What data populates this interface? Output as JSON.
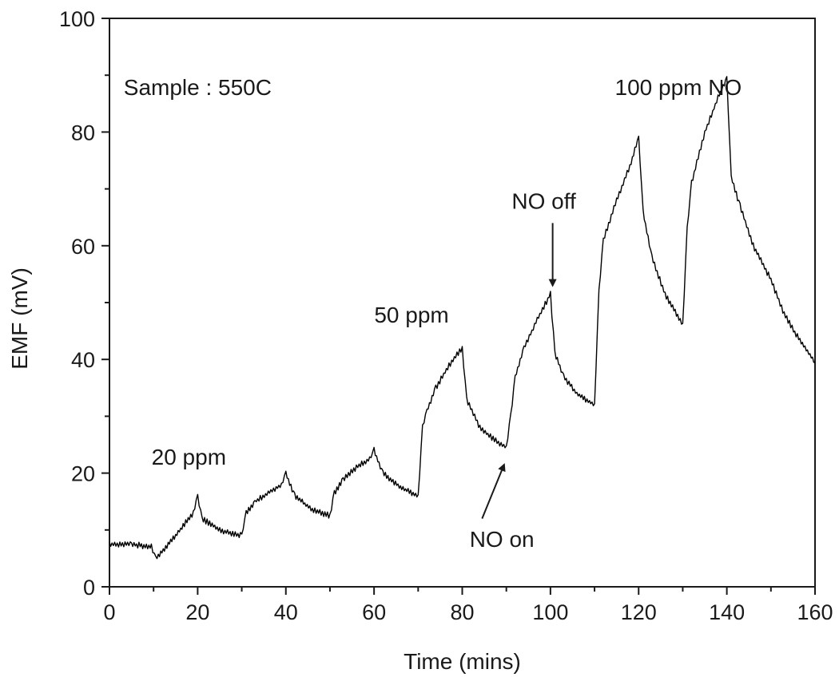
{
  "chart_data": {
    "type": "line",
    "xlabel": "Time (mins)",
    "ylabel": "EMF (mV)",
    "xlim": [
      0,
      160
    ],
    "ylim": [
      0,
      100
    ],
    "xticks": [
      0,
      20,
      40,
      60,
      80,
      100,
      120,
      140,
      160
    ],
    "yticks": [
      0,
      20,
      40,
      60,
      80,
      100
    ],
    "grid": false,
    "series": [
      {
        "color": "#000000",
        "x": [
          0,
          5,
          9.5,
          10.5,
          15,
          19,
          20,
          21,
          25,
          30,
          31,
          33,
          36,
          39,
          40,
          42,
          46,
          50,
          51,
          53,
          56,
          59,
          60,
          62,
          66,
          70,
          71,
          72,
          74,
          77,
          80,
          81,
          84,
          87,
          90,
          91,
          92,
          94,
          97,
          100,
          101,
          103,
          106,
          110,
          111,
          112,
          115,
          118,
          120,
          121,
          123,
          126,
          130,
          131,
          132,
          135,
          138,
          140,
          141,
          143,
          146,
          150,
          153,
          156,
          160
        ],
        "y": [
          7.5,
          7.5,
          7,
          5,
          9,
          13,
          16,
          12,
          10,
          9,
          13,
          15,
          16.5,
          18,
          20,
          16,
          13.5,
          12.5,
          16.5,
          19,
          21,
          22.5,
          24,
          20,
          17.5,
          16,
          28,
          31,
          35,
          39,
          42,
          33,
          28,
          26,
          24.5,
          30,
          37,
          42,
          47,
          51.5,
          41,
          37,
          34,
          32,
          52,
          61,
          68,
          74,
          79,
          66,
          58,
          51.5,
          46,
          63,
          71,
          80,
          86,
          89.5,
          72,
          67,
          60,
          54,
          48,
          44,
          39.5
        ]
      }
    ],
    "annotations": [
      {
        "text": "Sample : 550C",
        "x": 20,
        "y": 86.5
      },
      {
        "text": "20 ppm",
        "x": 18,
        "y": 21.5
      },
      {
        "text": "50 ppm",
        "x": 68.5,
        "y": 46.5
      },
      {
        "text": "NO off",
        "x": 98.5,
        "y": 66.5
      },
      {
        "text": "NO on",
        "x": 89,
        "y": 7
      },
      {
        "text": "100 ppm NO",
        "x": 129,
        "y": 86.5
      }
    ],
    "arrows": [
      {
        "label": "NO off",
        "from": [
          100.5,
          64
        ],
        "to": [
          100.5,
          53
        ]
      },
      {
        "label": "NO on",
        "from": [
          84.5,
          12
        ],
        "to": [
          89.5,
          21.5
        ]
      }
    ]
  }
}
